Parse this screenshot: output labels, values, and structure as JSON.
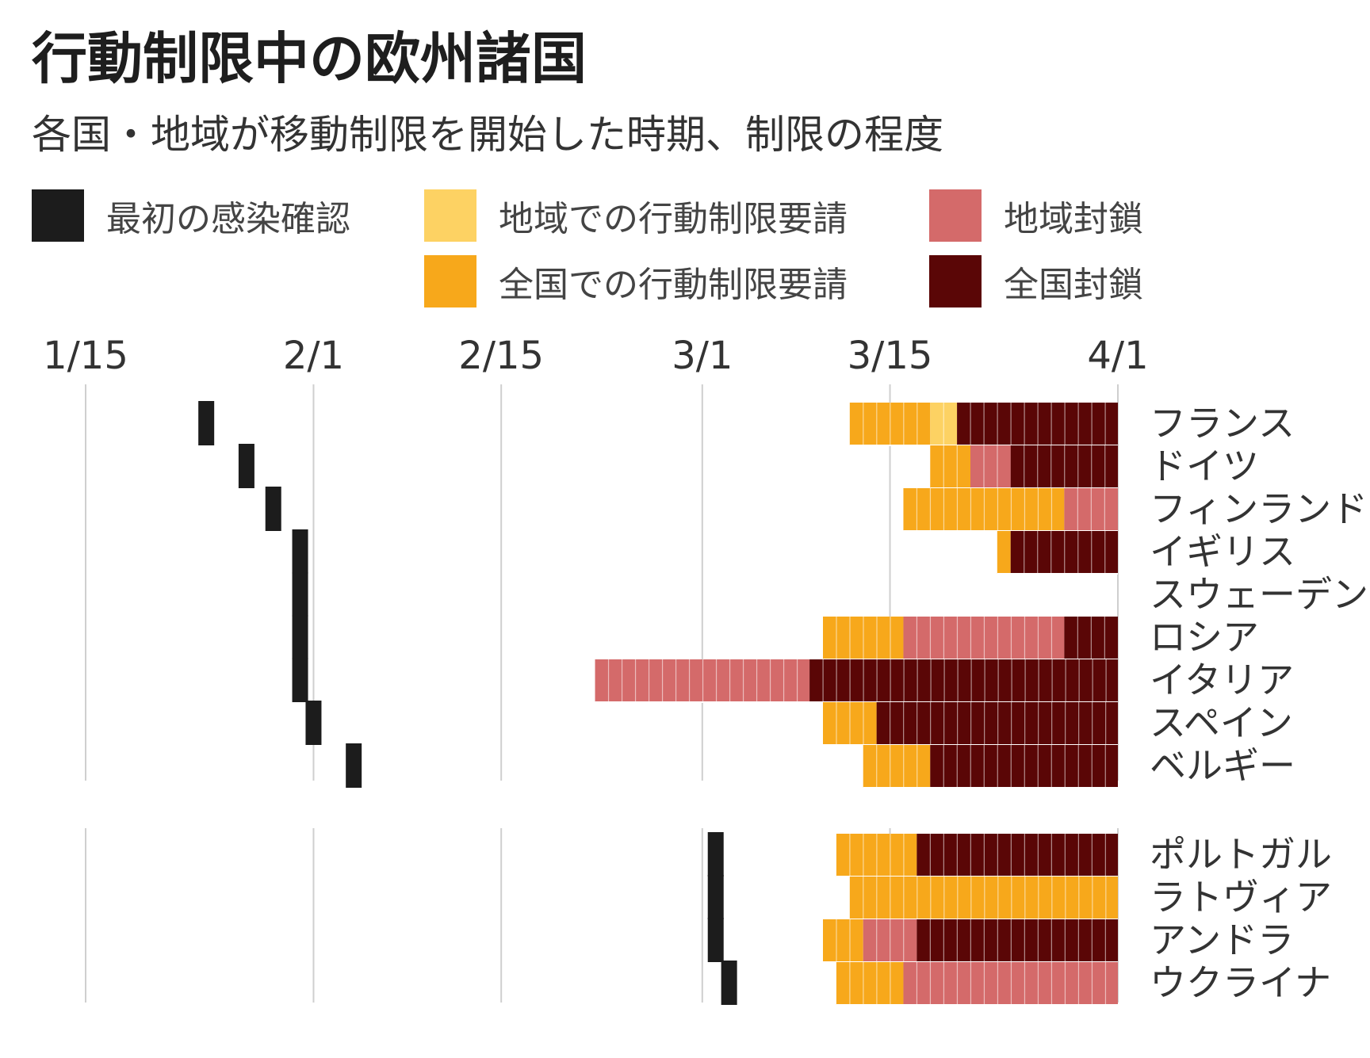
{
  "chart_data": {
    "type": "bar",
    "title": "行動制限中の欧州諸国",
    "subtitle": "各国・地域が移動制限を開始した時期、制限の程度",
    "x_ticks": [
      "1/15",
      "2/1",
      "2/15",
      "3/1",
      "3/15",
      "4/1"
    ],
    "x_range": [
      "1/15",
      "4/1"
    ],
    "legend": [
      {
        "key": "first_case",
        "label": "最初の感染確認",
        "color": "#1c1c1c"
      },
      {
        "key": "regional_request",
        "label": "地域での行動制限要請",
        "color": "#fdd263"
      },
      {
        "key": "regional_lockdown",
        "label": "地域封鎖",
        "color": "#d46a6a"
      },
      {
        "key": "national_request",
        "label": "全国での行動制限要請",
        "color": "#f7a81b"
      },
      {
        "key": "national_lockdown",
        "label": "全国封鎖",
        "color": "#5a0606"
      }
    ],
    "groups": [
      {
        "countries": [
          {
            "name": "フランス",
            "first_case": "1/24",
            "segments": [
              {
                "type": "national_request",
                "start": "3/12",
                "end": "3/18"
              },
              {
                "type": "regional_request",
                "start": "3/18",
                "end": "3/20"
              },
              {
                "type": "national_lockdown",
                "start": "3/20",
                "end": "4/1"
              }
            ]
          },
          {
            "name": "ドイツ",
            "first_case": "1/27",
            "segments": [
              {
                "type": "national_request",
                "start": "3/18",
                "end": "3/21"
              },
              {
                "type": "regional_lockdown",
                "start": "3/21",
                "end": "3/24"
              },
              {
                "type": "national_lockdown",
                "start": "3/24",
                "end": "4/1"
              }
            ]
          },
          {
            "name": "フィンランド",
            "first_case": "1/29",
            "segments": [
              {
                "type": "national_request",
                "start": "3/16",
                "end": "3/28"
              },
              {
                "type": "regional_lockdown",
                "start": "3/28",
                "end": "4/1"
              }
            ]
          },
          {
            "name": "イギリス",
            "first_case": "1/31",
            "segments": [
              {
                "type": "national_request",
                "start": "3/23",
                "end": "3/24"
              },
              {
                "type": "national_lockdown",
                "start": "3/24",
                "end": "4/1"
              }
            ]
          },
          {
            "name": "スウェーデン",
            "first_case": "1/31",
            "segments": []
          },
          {
            "name": "ロシア",
            "first_case": "1/31",
            "segments": [
              {
                "type": "national_request",
                "start": "3/10",
                "end": "3/16"
              },
              {
                "type": "regional_lockdown",
                "start": "3/16",
                "end": "3/28"
              },
              {
                "type": "national_lockdown",
                "start": "3/28",
                "end": "4/1"
              }
            ]
          },
          {
            "name": "イタリア",
            "first_case": "1/31",
            "segments": [
              {
                "type": "regional_lockdown",
                "start": "2/22",
                "end": "3/9"
              },
              {
                "type": "national_lockdown",
                "start": "3/9",
                "end": "4/1"
              }
            ]
          },
          {
            "name": "スペイン",
            "first_case": "2/1",
            "segments": [
              {
                "type": "national_request",
                "start": "3/10",
                "end": "3/14"
              },
              {
                "type": "national_lockdown",
                "start": "3/14",
                "end": "4/1"
              }
            ]
          },
          {
            "name": "ベルギー",
            "first_case": "2/4",
            "segments": [
              {
                "type": "national_request",
                "start": "3/13",
                "end": "3/18"
              },
              {
                "type": "national_lockdown",
                "start": "3/18",
                "end": "4/1"
              }
            ]
          }
        ]
      },
      {
        "countries": [
          {
            "name": "ポルトガル",
            "first_case": "3/2",
            "segments": [
              {
                "type": "national_request",
                "start": "3/11",
                "end": "3/17"
              },
              {
                "type": "national_lockdown",
                "start": "3/17",
                "end": "4/1"
              }
            ]
          },
          {
            "name": "ラトヴィア",
            "first_case": "3/2",
            "segments": [
              {
                "type": "national_request",
                "start": "3/12",
                "end": "4/1"
              }
            ]
          },
          {
            "name": "アンドラ",
            "first_case": "3/2",
            "segments": [
              {
                "type": "national_request",
                "start": "3/10",
                "end": "3/13"
              },
              {
                "type": "regional_lockdown",
                "start": "3/13",
                "end": "3/17"
              },
              {
                "type": "national_lockdown",
                "start": "3/17",
                "end": "4/1"
              }
            ]
          },
          {
            "name": "ウクライナ",
            "first_case": "3/3",
            "segments": [
              {
                "type": "national_request",
                "start": "3/11",
                "end": "3/16"
              },
              {
                "type": "regional_lockdown",
                "start": "3/16",
                "end": "4/1"
              }
            ]
          }
        ]
      }
    ]
  }
}
